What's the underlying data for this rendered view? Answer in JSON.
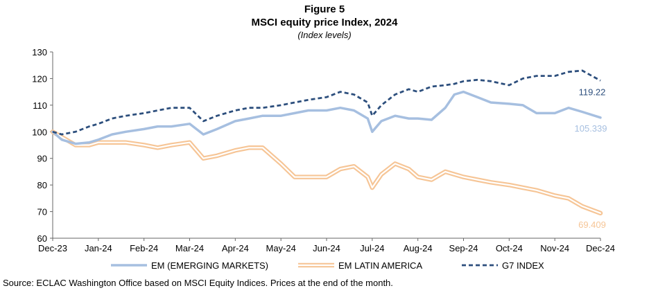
{
  "figure": {
    "number": "Figure 5",
    "title": "MSCI equity price Index, 2024",
    "subtitle": "(Index levels)"
  },
  "source": "Source: ECLAC Washington Office based on MSCI Equity Indices. Prices at the end of the month.",
  "chart_data": {
    "type": "line",
    "title": "MSCI equity price Index, 2024",
    "subtitle": "(Index levels)",
    "xlabel": "",
    "ylabel": "",
    "ylim": [
      60,
      130
    ],
    "yticks": [
      "60",
      "70",
      "80",
      "90",
      "100",
      "110",
      "120",
      "130"
    ],
    "categories": [
      "Dec-23",
      "Jan-24",
      "Feb-24",
      "Mar-24",
      "Apr-24",
      "May-24",
      "Jun-24",
      "Jul-24",
      "Aug-24",
      "Sep-24",
      "Oct-24",
      "Nov-24",
      "Dec-24"
    ],
    "x": [
      0,
      0.2,
      0.5,
      0.8,
      1.0,
      1.3,
      1.6,
      2.0,
      2.3,
      2.6,
      3.0,
      3.3,
      3.6,
      4.0,
      4.3,
      4.6,
      5.0,
      5.3,
      5.6,
      6.0,
      6.3,
      6.6,
      6.9,
      7.0,
      7.2,
      7.5,
      7.8,
      8.0,
      8.3,
      8.6,
      8.8,
      9.0,
      9.3,
      9.6,
      10.0,
      10.3,
      10.6,
      11.0,
      11.3,
      11.6,
      12.0
    ],
    "series": [
      {
        "name": "EM (EMERGING MARKETS)",
        "color": "#a6bfe0",
        "end_label": "105.339",
        "values": [
          100,
          97,
          95.5,
          96,
          97,
          99,
          100,
          101,
          102,
          102,
          103,
          99,
          101,
          104,
          105,
          106,
          106,
          107,
          108,
          108,
          109,
          108,
          105,
          100,
          104,
          106,
          105,
          105,
          104.5,
          109,
          114,
          115,
          113,
          111,
          110.5,
          110,
          107,
          107,
          109,
          107.5,
          105.339
        ]
      },
      {
        "name": "EM LATIN AMERICA",
        "color": "#f6c596",
        "end_label": "69.409",
        "values": [
          100,
          98,
          95,
          95,
          96,
          96,
          96,
          95,
          94,
          95,
          96,
          90,
          91,
          93,
          94,
          94,
          88,
          83,
          83,
          83,
          86,
          87,
          83,
          79,
          84,
          88,
          86,
          83,
          82,
          85,
          84,
          83,
          82,
          81,
          80,
          79,
          78,
          76,
          75,
          72,
          69.409
        ]
      },
      {
        "name": "G7 INDEX",
        "color": "#2d4f7d",
        "end_label": "119.22",
        "values": [
          100,
          99,
          100,
          102,
          103,
          105,
          106,
          107,
          108,
          109,
          109,
          104,
          106,
          108,
          109,
          109,
          110,
          111,
          112,
          113,
          115,
          114,
          111,
          106,
          110,
          114,
          116,
          115,
          117,
          117.5,
          118,
          119,
          119.5,
          119,
          117.5,
          120,
          121,
          121,
          122.5,
          123,
          119.22
        ]
      }
    ],
    "legend": [
      "EM (EMERGING MARKETS)",
      "EM LATIN AMERICA",
      "G7 INDEX"
    ],
    "legend_position": "bottom",
    "grid": false
  }
}
